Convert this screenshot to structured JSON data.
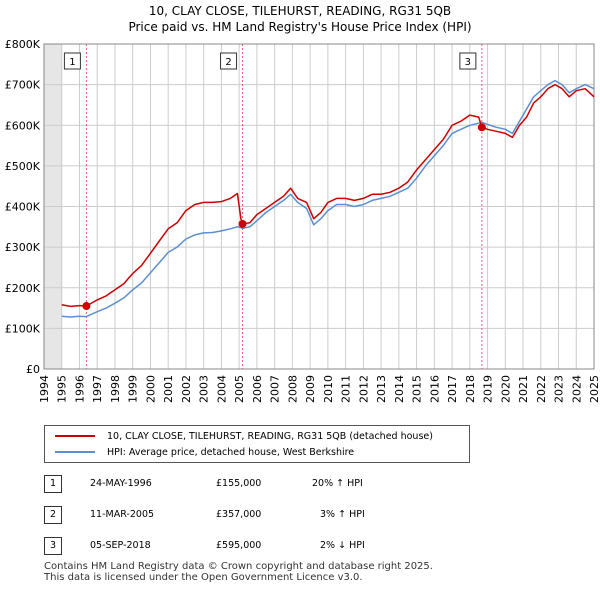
{
  "title": "10, CLAY CLOSE, TILEHURST, READING, RG31 5QB",
  "subtitle": "Price paid vs. HM Land Registry's House Price Index (HPI)",
  "chart_data": {
    "type": "line",
    "title": "10, CLAY CLOSE, TILEHURST, READING, RG31 5QB",
    "subtitle": "Price paid vs. HM Land Registry's House Price Index (HPI)",
    "xlabel": "",
    "ylabel": "",
    "xlim": [
      1994,
      2025
    ],
    "ylim": [
      0,
      800000
    ],
    "y_ticks": [
      0,
      100000,
      200000,
      300000,
      400000,
      500000,
      600000,
      700000,
      800000
    ],
    "y_tick_labels": [
      "£0",
      "£100K",
      "£200K",
      "£300K",
      "£400K",
      "£500K",
      "£600K",
      "£700K",
      "£800K"
    ],
    "x_ticks": [
      1994,
      1995,
      1996,
      1997,
      1998,
      1999,
      2000,
      2001,
      2002,
      2003,
      2004,
      2005,
      2006,
      2007,
      2008,
      2009,
      2010,
      2011,
      2012,
      2013,
      2014,
      2015,
      2016,
      2017,
      2018,
      2019,
      2020,
      2021,
      2022,
      2023,
      2024,
      2025
    ],
    "x_tick_labels": [
      "1994",
      "1995",
      "1996",
      "1997",
      "1998",
      "1999",
      "2000",
      "2001",
      "2002",
      "2003",
      "2004",
      "2005",
      "2006",
      "2007",
      "2008",
      "2009",
      "2010",
      "2011",
      "2012",
      "2013",
      "2014",
      "2015",
      "2016",
      "2017",
      "2018",
      "2019",
      "2020",
      "2021",
      "2022",
      "2023",
      "2024",
      "2025"
    ],
    "grid": true,
    "series": [
      {
        "name": "10, CLAY CLOSE, TILEHURST, READING, RG31 5QB (detached house)",
        "color": "#cc0000",
        "x": [
          1995.0,
          1995.5,
          1996.0,
          1996.39,
          1997.0,
          1997.5,
          1998.0,
          1998.5,
          1999.0,
          1999.5,
          2000.0,
          2000.5,
          2001.0,
          2001.5,
          2002.0,
          2002.5,
          2003.0,
          2003.5,
          2004.0,
          2004.5,
          2004.9,
          2005.1,
          2005.19,
          2005.6,
          2006.0,
          2006.5,
          2007.0,
          2007.5,
          2007.9,
          2008.3,
          2008.8,
          2009.2,
          2009.6,
          2010.0,
          2010.5,
          2011.0,
          2011.5,
          2012.0,
          2012.5,
          2013.0,
          2013.5,
          2014.0,
          2014.5,
          2015.0,
          2015.5,
          2016.0,
          2016.5,
          2017.0,
          2017.5,
          2018.0,
          2018.5,
          2018.68,
          2019.0,
          2019.5,
          2020.0,
          2020.4,
          2020.8,
          2021.2,
          2021.6,
          2022.0,
          2022.4,
          2022.8,
          2023.2,
          2023.6,
          2024.0,
          2024.5,
          2025.0
        ],
        "values": [
          158000,
          154000,
          156000,
          155000,
          170000,
          180000,
          195000,
          210000,
          235000,
          255000,
          285000,
          315000,
          345000,
          360000,
          390000,
          405000,
          410000,
          410000,
          412000,
          420000,
          432000,
          370000,
          357000,
          360000,
          380000,
          395000,
          410000,
          425000,
          445000,
          420000,
          410000,
          370000,
          385000,
          410000,
          420000,
          420000,
          415000,
          420000,
          430000,
          430000,
          435000,
          445000,
          460000,
          490000,
          515000,
          540000,
          565000,
          600000,
          610000,
          625000,
          620000,
          595000,
          590000,
          585000,
          580000,
          570000,
          600000,
          620000,
          655000,
          670000,
          690000,
          700000,
          690000,
          670000,
          685000,
          690000,
          670000
        ]
      },
      {
        "name": "HPI: Average price, detached house, West Berkshire",
        "color": "#5b8fd0",
        "x": [
          1995.0,
          1995.5,
          1996.0,
          1996.39,
          1997.0,
          1997.5,
          1998.0,
          1998.5,
          1999.0,
          1999.5,
          2000.0,
          2000.5,
          2001.0,
          2001.5,
          2002.0,
          2002.5,
          2003.0,
          2003.5,
          2004.0,
          2004.5,
          2004.9,
          2005.1,
          2005.19,
          2005.6,
          2006.0,
          2006.5,
          2007.0,
          2007.5,
          2007.9,
          2008.3,
          2008.8,
          2009.2,
          2009.6,
          2010.0,
          2010.5,
          2011.0,
          2011.5,
          2012.0,
          2012.5,
          2013.0,
          2013.5,
          2014.0,
          2014.5,
          2015.0,
          2015.5,
          2016.0,
          2016.5,
          2017.0,
          2017.5,
          2018.0,
          2018.5,
          2018.68,
          2019.0,
          2019.5,
          2020.0,
          2020.4,
          2020.8,
          2021.2,
          2021.6,
          2022.0,
          2022.4,
          2022.8,
          2023.2,
          2023.6,
          2024.0,
          2024.5,
          2025.0
        ],
        "values": [
          130000,
          128000,
          130000,
          129000,
          141000,
          150000,
          162000,
          175000,
          195000,
          212000,
          237000,
          262000,
          287000,
          300000,
          320000,
          330000,
          335000,
          336000,
          340000,
          345000,
          350000,
          348000,
          346000,
          350000,
          365000,
          385000,
          400000,
          415000,
          430000,
          410000,
          395000,
          355000,
          370000,
          390000,
          405000,
          405000,
          400000,
          405000,
          415000,
          420000,
          425000,
          435000,
          445000,
          470000,
          500000,
          525000,
          550000,
          580000,
          590000,
          600000,
          605000,
          607000,
          602000,
          595000,
          590000,
          580000,
          610000,
          640000,
          670000,
          685000,
          700000,
          710000,
          700000,
          680000,
          690000,
          700000,
          690000
        ]
      }
    ],
    "annotations": [
      {
        "label": "1",
        "x": 1996.39,
        "y": 155000
      },
      {
        "label": "2",
        "x": 2005.19,
        "y": 357000
      },
      {
        "label": "3",
        "x": 2018.68,
        "y": 595000
      }
    ]
  },
  "legend": {
    "entries": [
      {
        "label": "10, CLAY CLOSE, TILEHURST, READING, RG31 5QB (detached house)",
        "color": "#cc0000"
      },
      {
        "label": "HPI: Average price, detached house, West Berkshire",
        "color": "#5b8fd0"
      }
    ]
  },
  "transactions": [
    {
      "num": "1",
      "date": "24-MAY-1996",
      "price": "£155,000",
      "hpi": "20% ↑ HPI"
    },
    {
      "num": "2",
      "date": "11-MAR-2005",
      "price": "£357,000",
      "hpi": "3% ↑ HPI"
    },
    {
      "num": "3",
      "date": "05-SEP-2018",
      "price": "£595,000",
      "hpi": "2% ↓ HPI"
    }
  ],
  "footer": {
    "line1": "Contains HM Land Registry data © Crown copyright and database right 2025.",
    "line2": "This data is licensed under the Open Government Licence v3.0."
  }
}
